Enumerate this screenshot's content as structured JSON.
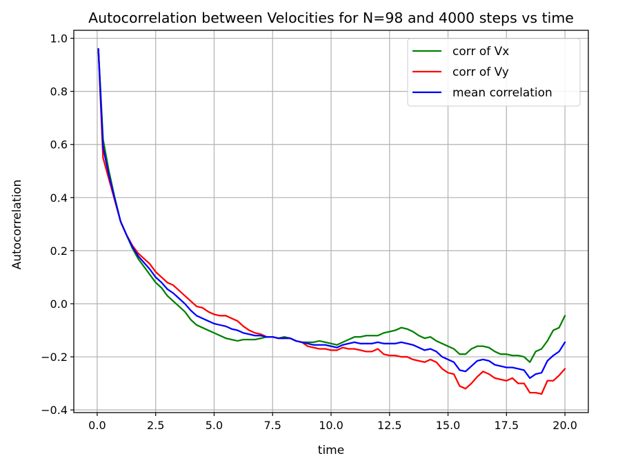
{
  "chart_data": {
    "type": "line",
    "title": "Autocorrelation between Velocities for N=98 and 4000 steps vs time",
    "xlabel": "time",
    "ylabel": "Autocorrelation",
    "xlim": [
      -1.0,
      21.0
    ],
    "ylim": [
      -0.41,
      1.03
    ],
    "xticks": [
      0.0,
      2.5,
      5.0,
      7.5,
      10.0,
      12.5,
      15.0,
      17.5,
      20.0
    ],
    "xtick_labels": [
      "0.0",
      "2.5",
      "5.0",
      "7.5",
      "10.0",
      "12.5",
      "15.0",
      "17.5",
      "20.0"
    ],
    "yticks": [
      -0.4,
      -0.2,
      0.0,
      0.2,
      0.4,
      0.6,
      0.8,
      1.0
    ],
    "ytick_labels": [
      "−0.4",
      "−0.2",
      "0.0",
      "0.2",
      "0.4",
      "0.6",
      "0.8",
      "1.0"
    ],
    "grid": true,
    "legend_position": "top-right",
    "x": [
      0.05,
      0.25,
      0.5,
      0.75,
      1.0,
      1.25,
      1.5,
      1.75,
      2.0,
      2.25,
      2.5,
      2.75,
      3.0,
      3.25,
      3.5,
      3.75,
      4.0,
      4.25,
      4.5,
      4.75,
      5.0,
      5.25,
      5.5,
      5.75,
      6.0,
      6.25,
      6.5,
      6.75,
      7.0,
      7.25,
      7.5,
      7.75,
      8.0,
      8.25,
      8.5,
      8.75,
      9.0,
      9.25,
      9.5,
      9.75,
      10.0,
      10.25,
      10.5,
      10.75,
      11.0,
      11.25,
      11.5,
      11.75,
      12.0,
      12.25,
      12.5,
      12.75,
      13.0,
      13.25,
      13.5,
      13.75,
      14.0,
      14.25,
      14.5,
      14.75,
      15.0,
      15.25,
      15.5,
      15.75,
      16.0,
      16.25,
      16.5,
      16.75,
      17.0,
      17.25,
      17.5,
      17.75,
      18.0,
      18.25,
      18.5,
      18.75,
      19.0,
      19.25,
      19.5,
      19.75,
      20.0
    ],
    "series": [
      {
        "name": "corr of Vx",
        "color": "#008000",
        "values": [
          0.96,
          0.62,
          0.5,
          0.4,
          0.31,
          0.26,
          0.21,
          0.17,
          0.14,
          0.11,
          0.08,
          0.06,
          0.03,
          0.01,
          -0.01,
          -0.03,
          -0.06,
          -0.08,
          -0.09,
          -0.1,
          -0.11,
          -0.12,
          -0.13,
          -0.135,
          -0.14,
          -0.135,
          -0.135,
          -0.135,
          -0.13,
          -0.125,
          -0.125,
          -0.13,
          -0.125,
          -0.13,
          -0.14,
          -0.145,
          -0.145,
          -0.145,
          -0.14,
          -0.145,
          -0.15,
          -0.155,
          -0.145,
          -0.135,
          -0.125,
          -0.125,
          -0.12,
          -0.12,
          -0.12,
          -0.11,
          -0.105,
          -0.1,
          -0.09,
          -0.095,
          -0.105,
          -0.12,
          -0.13,
          -0.125,
          -0.14,
          -0.15,
          -0.16,
          -0.17,
          -0.19,
          -0.19,
          -0.17,
          -0.16,
          -0.16,
          -0.165,
          -0.18,
          -0.19,
          -0.19,
          -0.195,
          -0.195,
          -0.2,
          -0.22,
          -0.18,
          -0.17,
          -0.14,
          -0.1,
          -0.09,
          -0.045
        ]
      },
      {
        "name": "corr of Vy",
        "color": "#ff0000",
        "values": [
          0.96,
          0.55,
          0.47,
          0.39,
          0.31,
          0.26,
          0.22,
          0.19,
          0.17,
          0.15,
          0.12,
          0.1,
          0.08,
          0.07,
          0.05,
          0.03,
          0.01,
          -0.01,
          -0.015,
          -0.03,
          -0.04,
          -0.045,
          -0.045,
          -0.055,
          -0.065,
          -0.085,
          -0.1,
          -0.11,
          -0.115,
          -0.125,
          -0.125,
          -0.13,
          -0.13,
          -0.13,
          -0.14,
          -0.145,
          -0.16,
          -0.165,
          -0.17,
          -0.17,
          -0.175,
          -0.175,
          -0.165,
          -0.17,
          -0.17,
          -0.175,
          -0.18,
          -0.18,
          -0.17,
          -0.19,
          -0.195,
          -0.195,
          -0.2,
          -0.2,
          -0.21,
          -0.215,
          -0.22,
          -0.21,
          -0.22,
          -0.245,
          -0.26,
          -0.265,
          -0.31,
          -0.32,
          -0.3,
          -0.275,
          -0.255,
          -0.265,
          -0.28,
          -0.285,
          -0.29,
          -0.28,
          -0.3,
          -0.3,
          -0.335,
          -0.335,
          -0.34,
          -0.29,
          -0.29,
          -0.27,
          -0.245
        ]
      },
      {
        "name": "mean correlation",
        "color": "#0000ff",
        "values": [
          0.96,
          0.59,
          0.485,
          0.395,
          0.31,
          0.26,
          0.215,
          0.18,
          0.155,
          0.13,
          0.1,
          0.08,
          0.055,
          0.04,
          0.02,
          0.0,
          -0.025,
          -0.045,
          -0.055,
          -0.065,
          -0.075,
          -0.08,
          -0.085,
          -0.095,
          -0.1,
          -0.11,
          -0.115,
          -0.12,
          -0.12,
          -0.125,
          -0.125,
          -0.13,
          -0.13,
          -0.13,
          -0.14,
          -0.145,
          -0.15,
          -0.155,
          -0.155,
          -0.155,
          -0.16,
          -0.165,
          -0.155,
          -0.15,
          -0.145,
          -0.15,
          -0.15,
          -0.15,
          -0.145,
          -0.15,
          -0.15,
          -0.15,
          -0.145,
          -0.15,
          -0.155,
          -0.165,
          -0.175,
          -0.17,
          -0.18,
          -0.2,
          -0.21,
          -0.22,
          -0.25,
          -0.255,
          -0.235,
          -0.215,
          -0.21,
          -0.215,
          -0.23,
          -0.235,
          -0.24,
          -0.24,
          -0.245,
          -0.25,
          -0.28,
          -0.265,
          -0.26,
          -0.215,
          -0.195,
          -0.18,
          -0.145
        ]
      }
    ]
  }
}
